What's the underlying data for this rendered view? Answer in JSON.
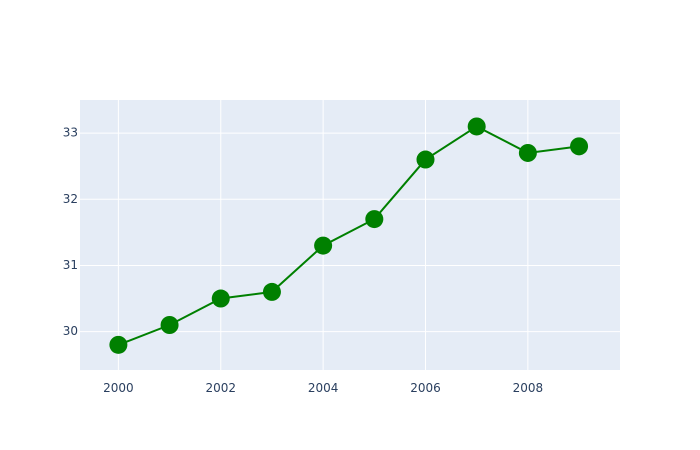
{
  "chart_data": {
    "type": "line",
    "title": "",
    "xlabel": "",
    "ylabel": "",
    "x": [
      2000,
      2001,
      2002,
      2003,
      2004,
      2005,
      2006,
      2007,
      2008,
      2009
    ],
    "series": [
      {
        "values": [
          29.8,
          30.1,
          30.5,
          30.6,
          31.3,
          31.7,
          32.6,
          33.1,
          32.7,
          32.8
        ]
      }
    ],
    "xlim": [
      1999.25,
      2009.8
    ],
    "ylim": [
      29.42,
      33.5
    ],
    "x_ticks": [
      2000,
      2002,
      2004,
      2006,
      2008
    ],
    "y_ticks": [
      30,
      31,
      32,
      33
    ],
    "x_tick_labels": [
      "2000",
      "2002",
      "2004",
      "2006",
      "2008"
    ],
    "y_tick_labels": [
      "30",
      "31",
      "32",
      "33"
    ],
    "grid": true,
    "legend": "none",
    "colors": {
      "line": "#008000",
      "marker": "#008000",
      "plot_background": "#e5ecf6",
      "grid": "#ffffff",
      "tick_text": "#2a3f5f"
    }
  }
}
